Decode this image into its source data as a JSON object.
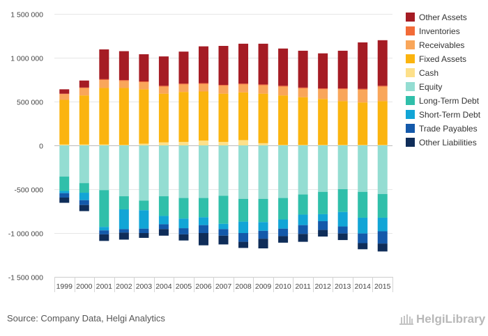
{
  "footer": {
    "source": "Source: Company Data, Helgi Analytics",
    "logo_text": "HelgiLibrary"
  },
  "chart_data": {
    "type": "bar",
    "stacked": true,
    "title": "",
    "xlabel": "",
    "ylabel": "",
    "ylim": [
      -1500000,
      1500000
    ],
    "yticks": [
      -1500000,
      -1000000,
      -500000,
      0,
      500000,
      1000000,
      1500000
    ],
    "ytick_labels": [
      "-1 500 000",
      "-1 000 000",
      "-500 000",
      "0",
      "500 000",
      "1 000 000",
      "1 500 000"
    ],
    "grid": true,
    "legend_position": "right",
    "categories": [
      "1999",
      "2000",
      "2001",
      "2002",
      "2003",
      "2004",
      "2005",
      "2006",
      "2007",
      "2008",
      "2009",
      "2010",
      "2011",
      "2012",
      "2013",
      "2014",
      "2015"
    ],
    "series": [
      {
        "name": "Other Assets",
        "color": "#a51c24",
        "side": "positive",
        "values": [
          50000,
          80000,
          340000,
          330000,
          310000,
          335000,
          365000,
          420000,
          445000,
          455000,
          465000,
          425000,
          420000,
          400000,
          430000,
          530000,
          520000
        ]
      },
      {
        "name": "Inventories",
        "color": "#f26b38",
        "side": "positive",
        "values": [
          5000,
          5000,
          10000,
          10000,
          10000,
          10000,
          10000,
          10000,
          10000,
          10000,
          10000,
          10000,
          10000,
          10000,
          10000,
          10000,
          10000
        ]
      },
      {
        "name": "Receivables",
        "color": "#f9a65a",
        "side": "positive",
        "values": [
          65000,
          85000,
          90000,
          80000,
          80000,
          80000,
          85000,
          85000,
          90000,
          90000,
          95000,
          100000,
          100000,
          110000,
          135000,
          145000,
          165000
        ]
      },
      {
        "name": "Fixed Assets",
        "color": "#fbb40f",
        "side": "positive",
        "values": [
          510000,
          560000,
          645000,
          650000,
          620000,
          555000,
          570000,
          560000,
          550000,
          545000,
          565000,
          565000,
          545000,
          525000,
          500000,
          485000,
          500000
        ]
      },
      {
        "name": "Cash",
        "color": "#fde08a",
        "side": "positive",
        "values": [
          10000,
          10000,
          10000,
          5000,
          20000,
          35000,
          40000,
          55000,
          40000,
          60000,
          25000,
          5000,
          5000,
          5000,
          5000,
          5000,
          5000
        ]
      },
      {
        "name": "Equity",
        "color": "#94ddd2",
        "side": "negative",
        "values": [
          355000,
          430000,
          510000,
          580000,
          630000,
          580000,
          600000,
          600000,
          575000,
          610000,
          610000,
          600000,
          560000,
          530000,
          500000,
          530000,
          555000
        ]
      },
      {
        "name": "Long-Term Debt",
        "color": "#30bfaa",
        "side": "negative",
        "values": [
          165000,
          110000,
          420000,
          150000,
          110000,
          225000,
          235000,
          220000,
          320000,
          260000,
          265000,
          245000,
          230000,
          255000,
          260000,
          295000,
          270000
        ]
      },
      {
        "name": "Short-Term Debt",
        "color": "#12a5d6",
        "side": "negative",
        "values": [
          25000,
          85000,
          40000,
          225000,
          210000,
          95000,
          110000,
          90000,
          60000,
          130000,
          100000,
          105000,
          120000,
          80000,
          165000,
          180000,
          155000
        ]
      },
      {
        "name": "Trade Payables",
        "color": "#1459aa",
        "side": "negative",
        "values": [
          50000,
          55000,
          45000,
          40000,
          50000,
          55000,
          70000,
          90000,
          75000,
          100000,
          90000,
          85000,
          100000,
          100000,
          80000,
          110000,
          140000
        ]
      },
      {
        "name": "Other Liabilities",
        "color": "#0f2d59",
        "side": "negative",
        "values": [
          60000,
          70000,
          75000,
          80000,
          55000,
          75000,
          70000,
          140000,
          100000,
          70000,
          110000,
          75000,
          90000,
          75000,
          75000,
          70000,
          90000
        ]
      }
    ]
  }
}
